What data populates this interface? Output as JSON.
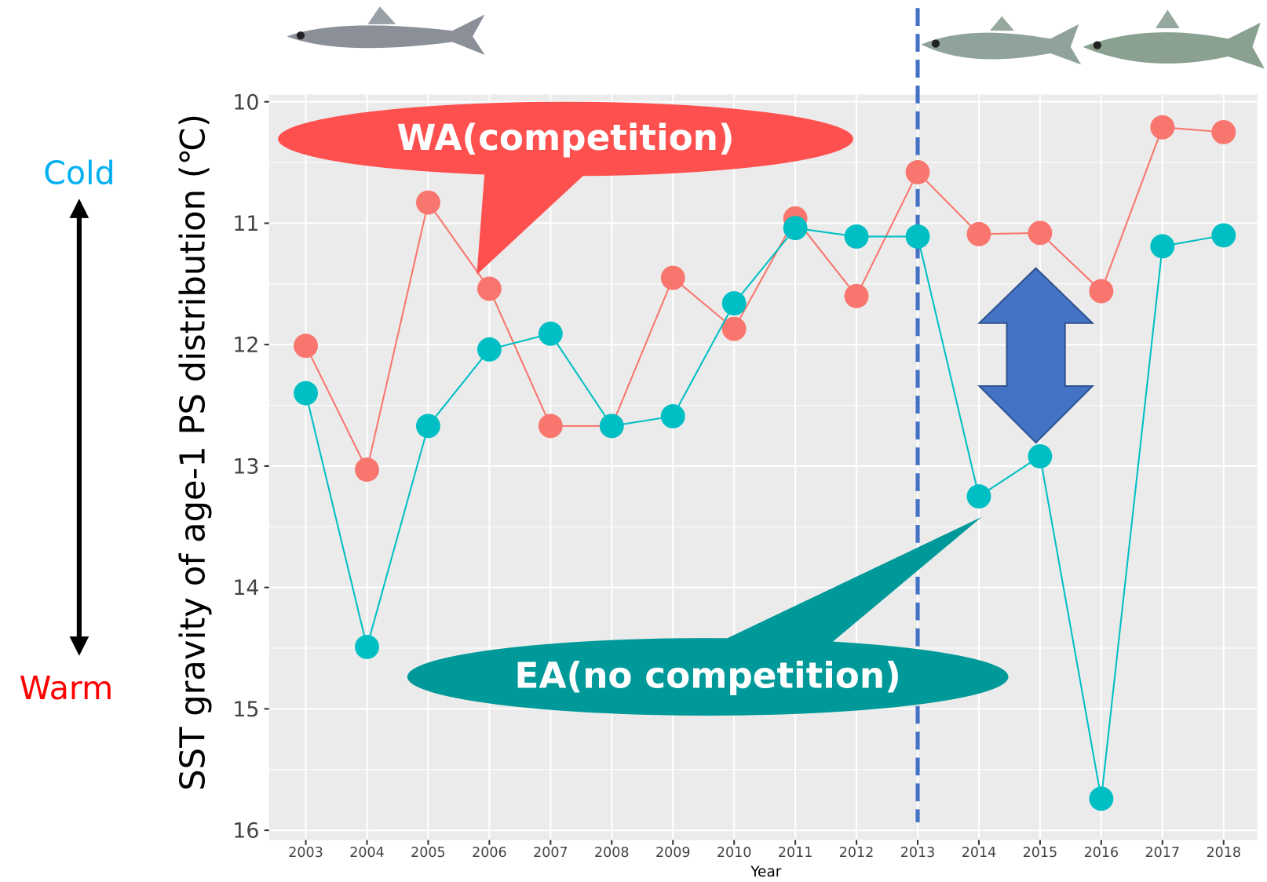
{
  "chart_data": {
    "type": "line",
    "x_label": "Year",
    "y_label": "SST gravity of age-1 PS distribution (℃)",
    "x": [
      2003,
      2004,
      2005,
      2006,
      2007,
      2008,
      2009,
      2010,
      2011,
      2012,
      2013,
      2014,
      2015,
      2016,
      2017,
      2018
    ],
    "xticks": [
      2003,
      2004,
      2005,
      2006,
      2007,
      2008,
      2009,
      2010,
      2011,
      2012,
      2013,
      2014,
      2015,
      2016,
      2017,
      2018
    ],
    "xlim": [
      2002.4,
      2018.55
    ],
    "ylim": [
      9.94,
      16.08
    ],
    "yticks": [
      10,
      11,
      12,
      13,
      14,
      15,
      16
    ],
    "y_reversed": true,
    "grid": true,
    "series": [
      {
        "name": "WA(competition)",
        "color": "#f8766d",
        "callout_color": "#ff5050",
        "values": [
          12.01,
          13.03,
          10.83,
          11.54,
          12.67,
          12.67,
          11.45,
          11.87,
          10.96,
          11.6,
          10.58,
          11.09,
          11.08,
          11.56,
          10.21,
          10.25
        ]
      },
      {
        "name": "EA(no competition)",
        "color": "#00bfc4",
        "callout_color": "#009999",
        "values": [
          12.4,
          14.49,
          12.67,
          12.04,
          11.91,
          12.67,
          12.59,
          11.66,
          11.04,
          11.11,
          11.11,
          13.25,
          12.92,
          15.74,
          11.19,
          11.1
        ]
      }
    ],
    "reference_line": {
      "x": 2013,
      "color": "#4472c4"
    },
    "annotations": [
      {
        "text": "Cold",
        "color": "#00b0f0"
      },
      {
        "text": "Warm",
        "color": "#ff0000"
      }
    ]
  }
}
